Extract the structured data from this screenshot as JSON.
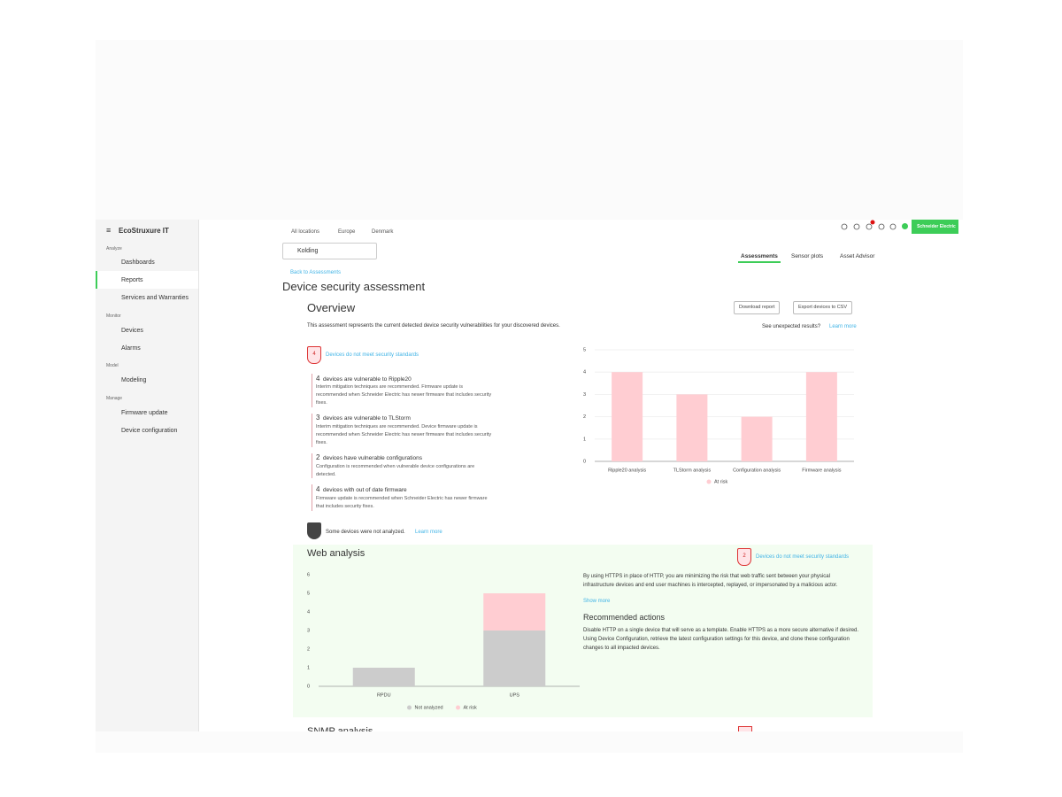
{
  "sidebar": {
    "brand": "EcoStruxure IT",
    "sections": [
      {
        "title": "Analyze",
        "items": [
          "Dashboards",
          "Reports",
          "Services and Warranties"
        ]
      },
      {
        "title": "Monitor",
        "items": [
          "Devices",
          "Alarms"
        ]
      },
      {
        "title": "Model",
        "items": [
          "Modeling"
        ]
      },
      {
        "title": "Manage",
        "items": [
          "Firmware update",
          "Device configuration"
        ]
      }
    ]
  },
  "header": {
    "breadcrumb": [
      "All locations",
      "Europe",
      "Denmark"
    ],
    "location": "Kolding",
    "brand": "Schneider Electric",
    "tabs": [
      "Assessments",
      "Sensor plots",
      "Asset Advisor"
    ],
    "back_link": "Back to Assessments",
    "title": "Device security assessment"
  },
  "overview": {
    "title": "Overview",
    "buttons": [
      "Download report",
      "Export devices to CSV"
    ],
    "description": "This assessment represents the current detected device security vulnerabilities for your discovered devices.",
    "unexpected": "See unexpected results?",
    "learn_more": "Learn more",
    "badge_count": 4,
    "badge_text": "Devices do not meet security standards",
    "findings": [
      {
        "count": 4,
        "text": "devices are vulnerable to Ripple20",
        "detail": "Interim mitigation techniques are recommended. Firmware update is recommended when Schneider Electric has newer firmware that includes security fixes."
      },
      {
        "count": 3,
        "text": "devices are vulnerable to TLStorm",
        "detail": "Interim mitigation techniques are recommended. Device firmware update is recommended when Schneider Electric has newer firmware that includes security fixes."
      },
      {
        "count": 2,
        "text": "devices have vulnerable configurations",
        "detail": "Configuration is recommended when vulnerable device configurations are detected."
      },
      {
        "count": 4,
        "text": "devices with out of date firmware",
        "detail": "Firmware update is recommended when Schneider Electric has newer firmware that includes security fixes."
      }
    ],
    "not_analyzed": "Some devices were not analyzed.",
    "not_analyzed_link": "Learn more"
  },
  "web_analysis": {
    "title": "Web analysis",
    "badge_count": 2,
    "badge_text": "Devices do not meet security standards",
    "description": "By using HTTPS in place of HTTP, you are minimizing the risk that web traffic sent between your physical infrastructure devices and end user machines is intercepted, replayed, or impersonated by a malicious actor.",
    "show_more": "Show more",
    "actions_title": "Recommended actions",
    "actions": "Disable HTTP on a single device that will serve as a template. Enable HTTPS as a more secure alternative if desired. Using Device Configuration, retrieve the latest configuration settings for this device, and clone these configuration changes to all impacted devices."
  },
  "snmp_analysis": {
    "title": "SNMP analysis"
  },
  "chart_data": [
    {
      "type": "bar",
      "categories": [
        "Ripple20 analysis",
        "TLStorm analysis",
        "Configuration analysis",
        "Firmware analysis"
      ],
      "series": [
        {
          "name": "At risk",
          "color": "#ffcdd2",
          "values": [
            4,
            3,
            2,
            4
          ]
        }
      ],
      "ylim": [
        0,
        5
      ],
      "yticks": [
        0,
        1,
        2,
        3,
        4,
        5
      ],
      "grid": true
    },
    {
      "type": "bar",
      "stacked": true,
      "categories": [
        "RPDU",
        "UPS"
      ],
      "series": [
        {
          "name": "Not analyzed",
          "color": "#cccccc",
          "values": [
            1,
            3
          ]
        },
        {
          "name": "At risk",
          "color": "#ffcdd2",
          "values": [
            0,
            2
          ]
        }
      ],
      "ylim": [
        0,
        6
      ],
      "yticks": [
        0,
        1,
        2,
        3,
        4,
        5,
        6
      ],
      "grid": false
    }
  ]
}
